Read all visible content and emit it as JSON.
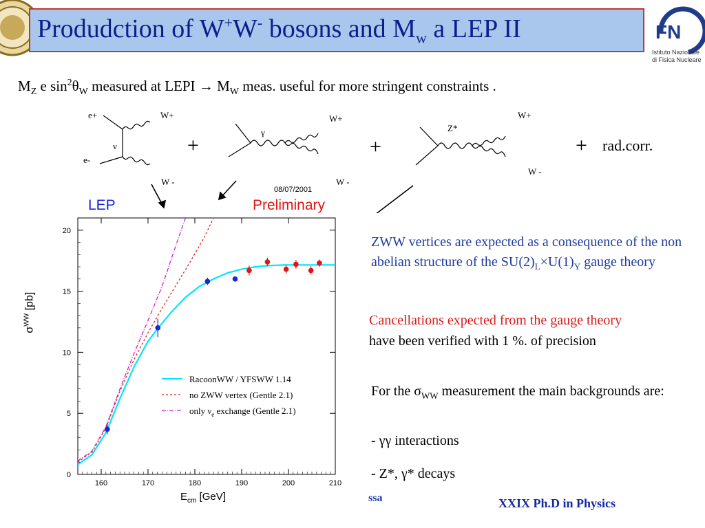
{
  "slide": {
    "title_main": "Produdction of W",
    "title_sup1": "+",
    "title_w2": "W",
    "title_sup2": "-",
    "title_mid": " bosons and M",
    "title_sub": "w",
    "title_end": " a LEP II",
    "subtitle": {
      "mz": "M",
      "mz_sub": "Z",
      "e_sin": " e sin",
      "sup2": "2",
      "theta": "θ",
      "theta_sub": "W",
      "measured": "  measured at LEPI ",
      "arrow": "→",
      "mw": "  M",
      "mw_sub": "W",
      "rest": " meas. useful for more stringent constraints ."
    },
    "footer": "XXIX  Ph.D in Physics",
    "footer_left": "ssa"
  },
  "logos": {
    "left_seal": "university-seal",
    "right_logo_name": "Istituto Nazionale",
    "right_logo_name2": "di Fisica Nucleare"
  },
  "feynman": {
    "d1": {
      "ep": "e+",
      "em": "e-",
      "nu": "ν",
      "wp": "W+",
      "wm": "W -"
    },
    "d2": {
      "gamma": "γ",
      "wp": "W+",
      "wm": "W -"
    },
    "d3": {
      "z": "Z*",
      "wp": "W+",
      "wm": "W -"
    },
    "plus": "+",
    "radcorr": "rad.corr."
  },
  "plot": {
    "date": "08/07/2001",
    "lep": "LEP",
    "prelim": "Preliminary",
    "ylabel_sigma": "σ",
    "ylabel_sup": "WW",
    "ylabel_unit": "[pb]",
    "xlabel_e": "E",
    "xlabel_sub": "cm",
    "xlabel_unit": "[GeV]",
    "legend": [
      {
        "label": "RacoonWW / YFSWW 1.14",
        "color": "#00e5ff",
        "style": "solid"
      },
      {
        "label": "no ZWW vertex (Gentle 2.1)",
        "color": "#e02020",
        "style": "dashed"
      },
      {
        "label_pre": "only ν",
        "label_sub": "e",
        "label_post": " exchange (Gentle 2.1)",
        "color": "#d020d0",
        "style": "dashdot"
      }
    ]
  },
  "chart_data": {
    "type": "scatter",
    "xlabel": "E_cm [GeV]",
    "ylabel": "σ^WW [pb]",
    "xlim": [
      155,
      210
    ],
    "ylim": [
      0,
      21
    ],
    "xticks": [
      160,
      170,
      180,
      190,
      200,
      210
    ],
    "yticks": [
      0,
      5,
      10,
      15,
      20
    ],
    "series": [
      {
        "name": "RacoonWW / YFSWW 1.14",
        "kind": "line",
        "color": "#00e5ff",
        "x": [
          155,
          158,
          161,
          164,
          167,
          170,
          172,
          175,
          178,
          181,
          184,
          187,
          190,
          193,
          196,
          199,
          202,
          205,
          208,
          210
        ],
        "y": [
          0.8,
          1.6,
          3.4,
          6.2,
          8.8,
          10.9,
          11.9,
          13.3,
          14.5,
          15.4,
          16.0,
          16.5,
          16.8,
          17.0,
          17.1,
          17.15,
          17.15,
          17.15,
          17.15,
          17.15
        ]
      },
      {
        "name": "no ZWW vertex (Gentle 2.1)",
        "kind": "line",
        "color": "#e02020",
        "dash": "3,3",
        "x": [
          155,
          158,
          161,
          164,
          167,
          170,
          173,
          176,
          179,
          182,
          184
        ],
        "y": [
          1.0,
          1.8,
          3.8,
          6.8,
          9.4,
          11.6,
          13.6,
          15.5,
          17.4,
          19.4,
          21.0
        ]
      },
      {
        "name": "only ν_e exchange (Gentle 2.1)",
        "kind": "line",
        "color": "#d020d0",
        "dash": "6,2,1,2",
        "x": [
          155,
          158,
          161,
          164,
          167,
          170,
          173,
          176,
          178
        ],
        "y": [
          1.1,
          1.9,
          3.9,
          7.0,
          9.9,
          12.6,
          15.4,
          18.8,
          21.0
        ]
      },
      {
        "name": "blue points",
        "kind": "points",
        "color": "#1428d8",
        "x": [
          161.3,
          172.1,
          182.7,
          188.6
        ],
        "y": [
          3.7,
          12.0,
          15.8,
          16.0
        ],
        "err": [
          0.4,
          0.75,
          0.3,
          0.2
        ]
      },
      {
        "name": "red points",
        "kind": "points",
        "color": "#e01515",
        "x": [
          191.6,
          195.5,
          199.5,
          201.6,
          204.8,
          206.6
        ],
        "y": [
          16.7,
          17.4,
          16.8,
          17.2,
          16.7,
          17.3
        ],
        "err": [
          0.4,
          0.35,
          0.35,
          0.35,
          0.35,
          0.3
        ]
      }
    ]
  }
}
